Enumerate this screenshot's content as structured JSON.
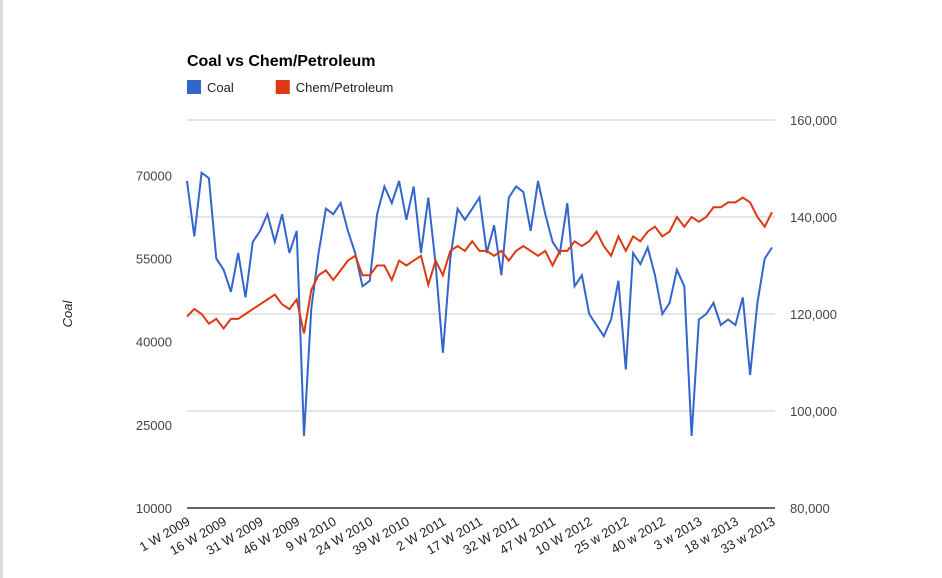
{
  "chart_data": {
    "type": "line",
    "title": "Coal vs Chem/Petroleum",
    "y_label": "Coal",
    "legend": "top",
    "grid": true,
    "categories": [
      "1 W 2009",
      null,
      null,
      null,
      null,
      "16 W 2009",
      null,
      null,
      null,
      null,
      "31 W 2009",
      null,
      null,
      null,
      null,
      "46 W 2009",
      null,
      null,
      null,
      null,
      "9 W 2010",
      null,
      null,
      null,
      null,
      "24 W 2010",
      null,
      null,
      null,
      null,
      "39 W 2010",
      null,
      null,
      null,
      null,
      "2 W 2011",
      null,
      null,
      null,
      null,
      "17 W 2011",
      null,
      null,
      null,
      null,
      "32 W 2011",
      null,
      null,
      null,
      null,
      "47 W 2011",
      null,
      null,
      null,
      null,
      "10 W 2012",
      null,
      null,
      null,
      null,
      "25 w 2012",
      null,
      null,
      null,
      null,
      "40 w 2012",
      null,
      null,
      null,
      null,
      "3 w 2013",
      null,
      null,
      null,
      null,
      "18 w 2013",
      null,
      null,
      null,
      null,
      "33 w 2013"
    ],
    "series": [
      {
        "name": "Coal",
        "color": "#3366cc",
        "values": [
          69000,
          59000,
          70500,
          69500,
          55000,
          53000,
          49000,
          56000,
          48000,
          58000,
          60000,
          63000,
          58000,
          63000,
          56000,
          60000,
          23000,
          46000,
          56000,
          64000,
          63000,
          65000,
          60000,
          56000,
          50000,
          51000,
          63000,
          68000,
          65000,
          69000,
          62000,
          68000,
          56000,
          66000,
          54000,
          38000,
          55000,
          64000,
          62000,
          64000,
          66000,
          56000,
          61000,
          52000,
          66000,
          68000,
          67000,
          60000,
          69000,
          63000,
          58000,
          56000,
          65000,
          50000,
          52000,
          45000,
          43000,
          41000,
          44000,
          51000,
          35000,
          56000,
          54000,
          57000,
          52000,
          45000,
          47000,
          53000,
          50000,
          23000,
          44000,
          45000,
          47000,
          43000,
          44000,
          43000,
          48000,
          34000,
          47000,
          55000,
          57000
        ]
      },
      {
        "name": "Chem/Petroleum",
        "color": "#dc3912",
        "axis": "y2",
        "values": [
          119500,
          121000,
          120000,
          118000,
          119000,
          117000,
          119000,
          119000,
          120000,
          121000,
          122000,
          123000,
          124000,
          122000,
          121000,
          123000,
          116000,
          125000,
          128000,
          129000,
          127000,
          129000,
          131000,
          132000,
          128000,
          128000,
          130000,
          130000,
          127000,
          131000,
          130000,
          131000,
          132000,
          126000,
          131000,
          128000,
          133000,
          134000,
          133000,
          135000,
          133000,
          133000,
          132000,
          133000,
          131000,
          133000,
          134000,
          133000,
          132000,
          133000,
          130000,
          133000,
          133000,
          135000,
          134000,
          135000,
          137000,
          134000,
          132000,
          136000,
          133000,
          136000,
          135000,
          137000,
          138000,
          136000,
          137000,
          140000,
          138000,
          140000,
          139000,
          140000,
          142000,
          142000,
          143000,
          143000,
          144000,
          143000,
          140000,
          138000,
          141000
        ]
      }
    ],
    "ylim": [
      10000,
      80000
    ],
    "yticks": [
      10000,
      25000,
      40000,
      55000,
      70000
    ],
    "y2lim": [
      80000,
      160000
    ],
    "y2ticks": [
      {
        "value": 80000,
        "label": "80,000"
      },
      {
        "value": 100000,
        "label": "100,000"
      },
      {
        "value": 120000,
        "label": "120,000"
      },
      {
        "value": 140000,
        "label": "140,000"
      },
      {
        "value": 160000,
        "label": "160,000"
      }
    ]
  }
}
